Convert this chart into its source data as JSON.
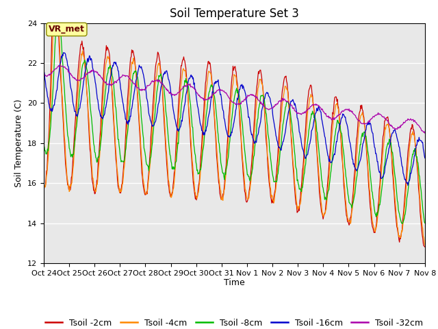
{
  "title": "Soil Temperature Set 3",
  "xlabel": "Time",
  "ylabel": "Soil Temperature (C)",
  "ylim": [
    12,
    24
  ],
  "yticks": [
    12,
    14,
    16,
    18,
    20,
    22,
    24
  ],
  "xtick_labels": [
    "Oct 24",
    "Oct 25",
    "Oct 26",
    "Oct 27",
    "Oct 28",
    "Oct 29",
    "Oct 30",
    "Oct 31",
    "Nov 1",
    "Nov 2",
    "Nov 3",
    "Nov 4",
    "Nov 5",
    "Nov 6",
    "Nov 7",
    "Nov 8"
  ],
  "colors": {
    "Tsoil -2cm": "#cc0000",
    "Tsoil -4cm": "#ff8800",
    "Tsoil -8cm": "#00bb00",
    "Tsoil -16cm": "#0000cc",
    "Tsoil -32cm": "#aa00aa"
  },
  "annotation_text": "VR_met",
  "bg_color": "#e8e8e8",
  "title_fontsize": 12,
  "axis_label_fontsize": 9,
  "tick_fontsize": 8,
  "legend_fontsize": 9
}
